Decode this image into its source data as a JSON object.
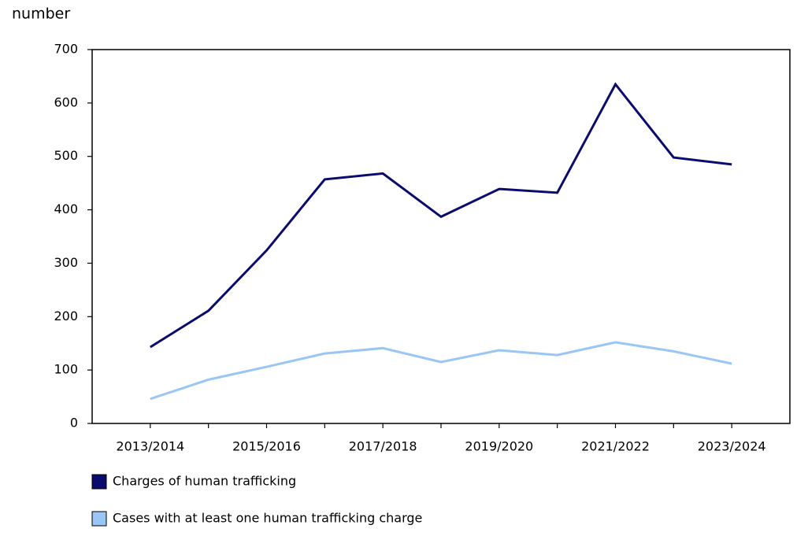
{
  "chart_data": {
    "type": "line",
    "y_axis_label": "number",
    "categories": [
      "2013/2014",
      null,
      "2015/2016",
      null,
      "2017/2018",
      null,
      "2019/2020",
      null,
      "2021/2022",
      null,
      "2023/2024"
    ],
    "series": [
      {
        "name": "Charges of human trafficking",
        "color": "#0b0b6e",
        "values": [
          143,
          211,
          324,
          457,
          468,
          387,
          439,
          432,
          635,
          498,
          485
        ]
      },
      {
        "name": "Cases with at least one human trafficking charge",
        "color": "#99c6f5",
        "values": [
          46,
          82,
          106,
          131,
          141,
          115,
          137,
          128,
          152,
          135,
          112
        ]
      }
    ],
    "ylim": [
      0,
      700
    ],
    "yticks": [
      0,
      100,
      200,
      300,
      400,
      500,
      600,
      700
    ]
  }
}
